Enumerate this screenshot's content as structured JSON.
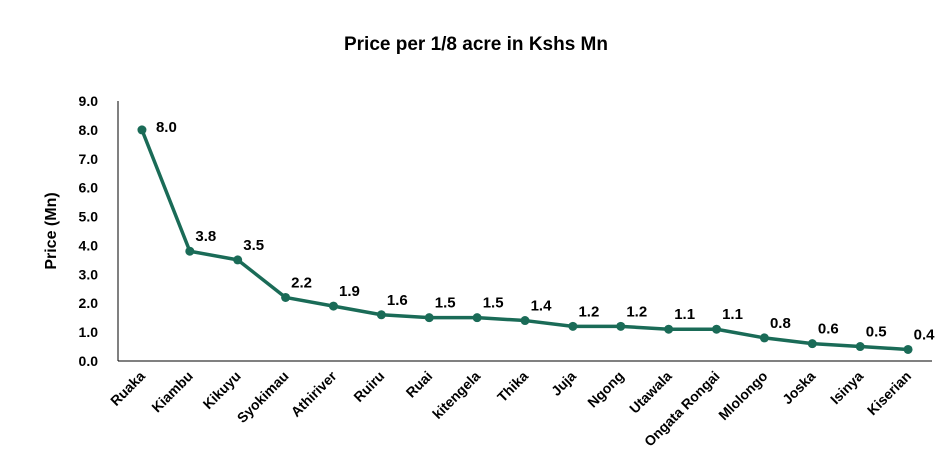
{
  "chart_data": {
    "type": "line",
    "title": "Price per 1/8 acre in Kshs Mn",
    "xlabel": "",
    "ylabel": "Price (Mn)",
    "categories": [
      "Ruaka",
      "Kiambu",
      "Kikuyu",
      "Syokimau",
      "Athiriver",
      "Ruiru",
      "Ruai",
      "kitengela",
      "Thika",
      "Juja",
      "Ngong",
      "Utawala",
      "Ongata Rongai",
      "Mlolongo",
      "Joska",
      "Isinya",
      "Kiserian"
    ],
    "series": [
      {
        "values": [
          8.0,
          3.8,
          3.5,
          2.2,
          1.9,
          1.6,
          1.5,
          1.5,
          1.4,
          1.2,
          1.2,
          1.1,
          1.1,
          0.8,
          0.6,
          0.5,
          0.4
        ],
        "labels": [
          "8.0",
          "3.8",
          "3.5",
          "2.2",
          "1.9",
          "1.6",
          "1.5",
          "1.5",
          "1.4",
          "1.2",
          "1.2",
          "1.1",
          "1.1",
          "0.8",
          "0.6",
          "0.5",
          "0.4"
        ]
      }
    ],
    "ylim": [
      0,
      9
    ],
    "yticks": [
      "0.0",
      "1.0",
      "2.0",
      "3.0",
      "4.0",
      "5.0",
      "6.0",
      "7.0",
      "8.0",
      "9.0"
    ],
    "grid": false,
    "legend": "none",
    "colors": {
      "line": "#1a6b57",
      "marker": "#1a6b57",
      "axis": "#000000",
      "text": "#000000"
    }
  }
}
